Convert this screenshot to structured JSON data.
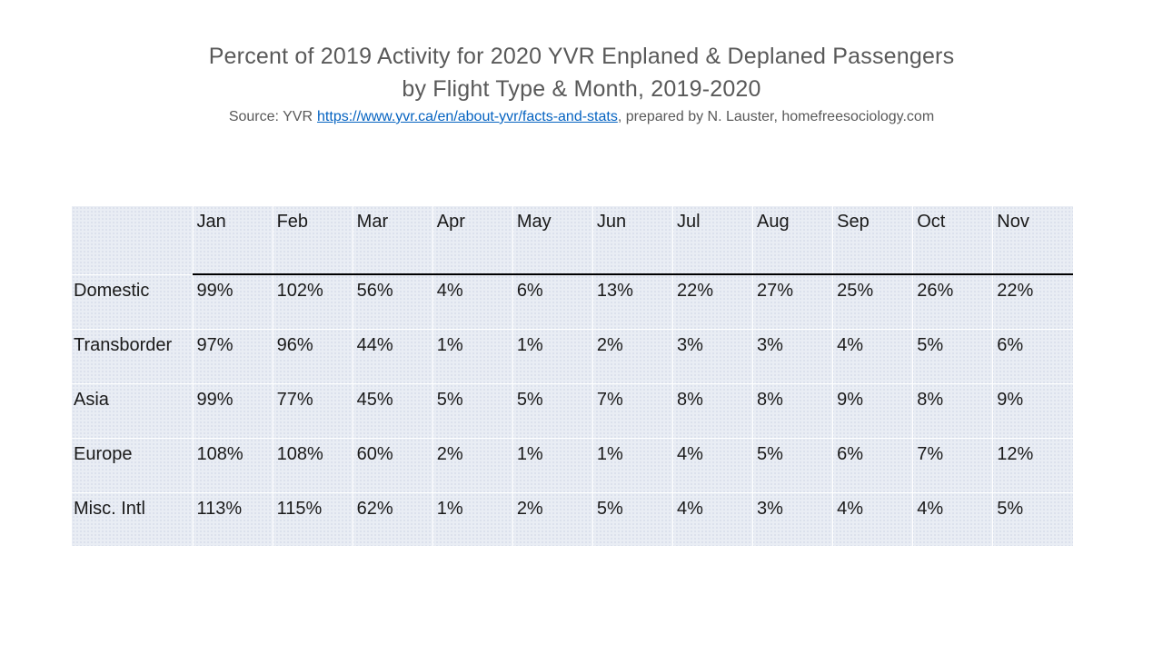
{
  "slide": {
    "title_line1": "Percent of 2019 Activity for 2020 YVR Enplaned & Deplaned Passengers",
    "title_line2": "by Flight Type & Month, 2019-2020",
    "source_prefix": "Source: YVR",
    "source_link": "https://www.yvr.ca/en/about-yvr/facts-and-stats",
    "source_suffix": ", prepared by N. Lauster, homefreesociology.com"
  },
  "colors": {
    "title_gray": "#595959",
    "link_blue": "#0563C1",
    "table_fill": "#e9edf4",
    "gridline_white": "#ffffff",
    "header_rule_black": "#000000",
    "cell_text": "#1a1a1a"
  },
  "chart_data": {
    "type": "table",
    "title": "Percent of 2019 Activity for 2020 YVR Enplaned & Deplaned Passengers by Flight Type & Month, 2019-2020",
    "source": "Source: YVR https://www.yvr.ca/en/about-yvr/facts-and-stats, prepared by N. Lauster, homefreesociology.com",
    "row_header_label": "",
    "categories": [
      "Jan",
      "Feb",
      "Mar",
      "Apr",
      "May",
      "Jun",
      "Jul",
      "Aug",
      "Sep",
      "Oct",
      "Nov"
    ],
    "series": [
      {
        "name": "Domestic",
        "values": [
          "99%",
          "102%",
          "56%",
          "4%",
          "6%",
          "13%",
          "22%",
          "27%",
          "25%",
          "26%",
          "22%"
        ]
      },
      {
        "name": "Transborder",
        "values": [
          "97%",
          "96%",
          "44%",
          "1%",
          "1%",
          "2%",
          "3%",
          "3%",
          "4%",
          "5%",
          "6%"
        ]
      },
      {
        "name": "Asia",
        "values": [
          "99%",
          "77%",
          "45%",
          "5%",
          "5%",
          "7%",
          "8%",
          "8%",
          "9%",
          "8%",
          "9%"
        ]
      },
      {
        "name": "Europe",
        "values": [
          "108%",
          "108%",
          "60%",
          "2%",
          "1%",
          "1%",
          "4%",
          "5%",
          "6%",
          "7%",
          "12%"
        ]
      },
      {
        "name": "Misc. Intl",
        "values": [
          "113%",
          "115%",
          "62%",
          "1%",
          "2%",
          "5%",
          "4%",
          "3%",
          "4%",
          "4%",
          "5%"
        ]
      }
    ]
  }
}
